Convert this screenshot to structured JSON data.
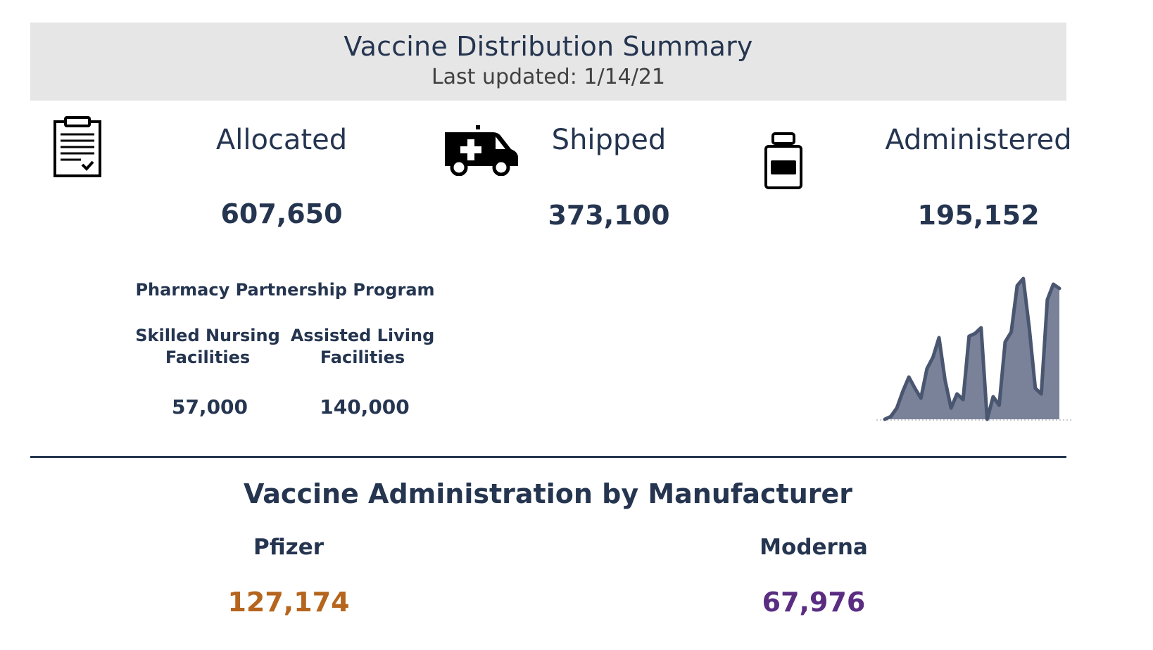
{
  "header": {
    "title": "Vaccine Distribution Summary",
    "subtitle": "Last updated: 1/14/21"
  },
  "kpis": {
    "allocated": {
      "label": "Allocated",
      "value": "607,650",
      "icon": "clipboard-icon"
    },
    "shipped": {
      "label": "Shipped",
      "value": "373,100",
      "icon": "ambulance-icon"
    },
    "administered": {
      "label": "Administered",
      "value": "195,152",
      "icon": "vaccine-vial-icon"
    }
  },
  "pharmacy_partnership": {
    "title": "Pharmacy Partnership Program",
    "columns": [
      {
        "label_line1": "Skilled Nursing",
        "label_line2": "Facilities",
        "value": "57,000"
      },
      {
        "label_line1": "Assisted Living",
        "label_line2": "Facilities",
        "value": "140,000"
      }
    ]
  },
  "manufacturer": {
    "title": "Vaccine Administration by Manufacturer",
    "pfizer": {
      "label": "Pfizer",
      "value": "127,174"
    },
    "moderna": {
      "label": "Moderna",
      "value": "67,976"
    }
  },
  "colors": {
    "navy": "#253550",
    "pfizer": "#b5651d",
    "moderna": "#5a2d82",
    "area_fill": "#7a8299",
    "area_line": "#4a5670",
    "header_bg": "#e6e6e6"
  },
  "chart_data": {
    "type": "area",
    "title": "",
    "xlabel": "",
    "ylabel": "",
    "grid": false,
    "legend": "none",
    "series": [
      {
        "values": [
          0,
          2,
          8,
          20,
          30,
          22,
          15,
          36,
          44,
          58,
          28,
          8,
          18,
          14,
          59,
          61,
          65,
          0,
          16,
          10,
          55,
          62,
          95,
          100,
          65,
          22,
          18,
          85,
          96,
          93
        ]
      }
    ],
    "ylim": [
      0,
      100
    ]
  }
}
